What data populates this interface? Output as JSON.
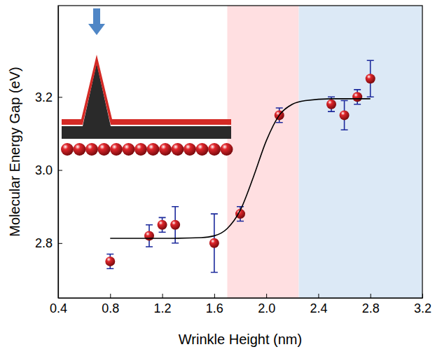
{
  "chart_data": {
    "type": "scatter",
    "xlabel": "Wrinkle Height (nm)",
    "ylabel": "Molecular Energy Gap (eV)",
    "xlim": [
      0.4,
      3.2
    ],
    "ylim": [
      2.65,
      3.45
    ],
    "xticks": [
      0.4,
      0.8,
      1.2,
      1.6,
      {
        "value": 2,
        "label": "2.0"
      },
      2.4,
      2.8,
      3.2
    ],
    "yticks": [
      2.8,
      {
        "value": 3,
        "label": "3.0"
      },
      3.2
    ],
    "regions": [
      {
        "x": [
          1.7,
          2.25
        ],
        "color": "#ffdfe1"
      },
      {
        "x": [
          2.25,
          3.2
        ],
        "color": "#dce9f6"
      }
    ],
    "series": [
      {
        "type": "scatter",
        "marker": "circle",
        "color": "#e0262b",
        "x": [
          0.8,
          1.1,
          1.2,
          1.3,
          1.6,
          1.8,
          2.1,
          2.5,
          2.6,
          2.7,
          2.8
        ],
        "values": [
          2.75,
          2.82,
          2.85,
          2.85,
          2.8,
          2.88,
          3.15,
          3.18,
          3.15,
          3.2,
          3.25
        ],
        "errors": [
          0.02,
          0.03,
          0.02,
          0.05,
          0.08,
          0.02,
          0.02,
          0.02,
          0.04,
          0.02,
          0.05
        ]
      },
      {
        "type": "line",
        "line_style": "solid",
        "color": "#000000",
        "x": [
          0.8,
          1.2,
          1.5,
          1.6,
          1.7,
          1.8,
          1.9,
          2.0,
          2.1,
          2.2,
          2.3,
          2.5,
          2.8
        ],
        "values": [
          2.813,
          2.813,
          2.815,
          2.82,
          2.84,
          2.89,
          2.98,
          3.08,
          3.15,
          3.18,
          3.19,
          3.195,
          3.195
        ]
      }
    ]
  }
}
